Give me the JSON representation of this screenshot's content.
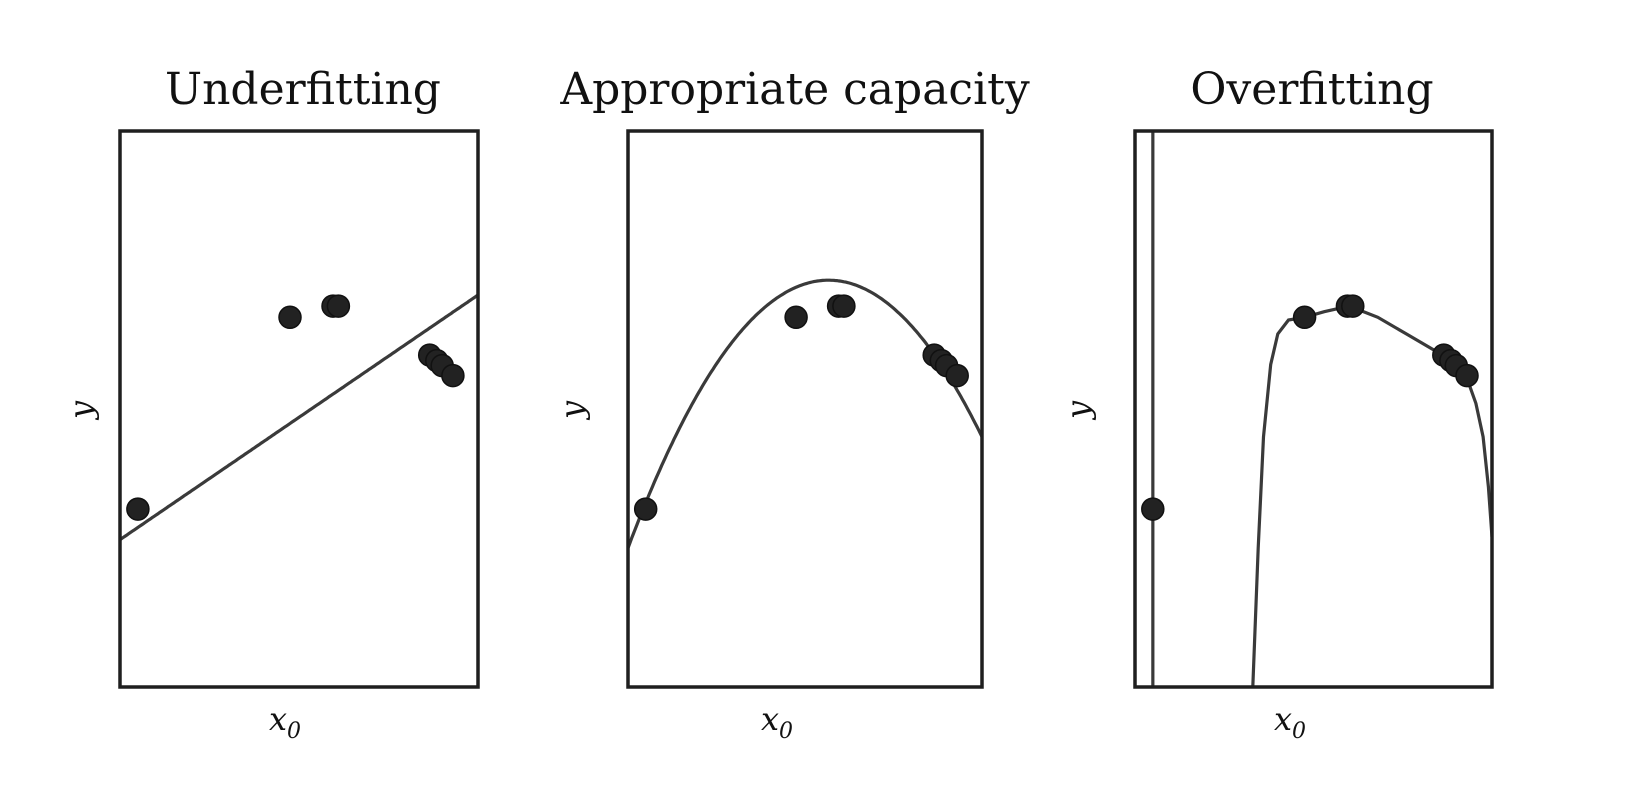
{
  "figure": {
    "background": "#ffffff",
    "ink": "#1f1f1f",
    "curve_color": "#3a3a3a",
    "point_color": "#222222"
  },
  "chart_data": [
    {
      "type": "scatter",
      "title": "Underfitting",
      "xlabel": "x",
      "xlabel_sub": "0",
      "ylabel": "y",
      "xlim": [
        0,
        1
      ],
      "ylim": [
        0,
        1
      ],
      "grid": false,
      "ticks": false,
      "points": [
        {
          "x": 0.05,
          "y": 0.32
        },
        {
          "x": 0.475,
          "y": 0.665
        },
        {
          "x": 0.595,
          "y": 0.685
        },
        {
          "x": 0.61,
          "y": 0.685
        },
        {
          "x": 0.865,
          "y": 0.597
        },
        {
          "x": 0.885,
          "y": 0.587
        },
        {
          "x": 0.9,
          "y": 0.578
        },
        {
          "x": 0.93,
          "y": 0.56
        }
      ],
      "fit": {
        "model": "linear",
        "coefficients": [
          0.44,
          0.265
        ]
      }
    },
    {
      "type": "scatter",
      "title": "Appropriate capacity",
      "xlabel": "x",
      "xlabel_sub": "0",
      "ylabel": "y",
      "xlim": [
        0,
        1
      ],
      "ylim": [
        0,
        1
      ],
      "grid": false,
      "ticks": false,
      "points": [
        {
          "x": 0.05,
          "y": 0.32
        },
        {
          "x": 0.475,
          "y": 0.665
        },
        {
          "x": 0.595,
          "y": 0.685
        },
        {
          "x": 0.61,
          "y": 0.685
        },
        {
          "x": 0.865,
          "y": 0.597
        },
        {
          "x": 0.885,
          "y": 0.587
        },
        {
          "x": 0.9,
          "y": 0.578
        },
        {
          "x": 0.93,
          "y": 0.56
        }
      ],
      "fit": {
        "model": "quadratic",
        "coefficients": [
          0.25,
          1.7,
          -1.5
        ]
      }
    },
    {
      "type": "scatter",
      "title": "Overfitting",
      "xlabel": "x",
      "xlabel_sub": "0",
      "ylabel": "y",
      "xlim": [
        0,
        1
      ],
      "ylim": [
        0,
        1
      ],
      "grid": false,
      "ticks": false,
      "points": [
        {
          "x": 0.05,
          "y": 0.32
        },
        {
          "x": 0.475,
          "y": 0.665
        },
        {
          "x": 0.595,
          "y": 0.685
        },
        {
          "x": 0.61,
          "y": 0.685
        },
        {
          "x": 0.865,
          "y": 0.597
        },
        {
          "x": 0.885,
          "y": 0.587
        },
        {
          "x": 0.9,
          "y": 0.578
        },
        {
          "x": 0.93,
          "y": 0.56
        }
      ],
      "fit": {
        "model": "high-degree polynomial",
        "vertical_asymptote_x": 0.05,
        "curve": [
          [
            0.33,
            0.0
          ],
          [
            0.345,
            0.25
          ],
          [
            0.36,
            0.45
          ],
          [
            0.38,
            0.58
          ],
          [
            0.4,
            0.635
          ],
          [
            0.43,
            0.66
          ],
          [
            0.475,
            0.665
          ],
          [
            0.53,
            0.675
          ],
          [
            0.6,
            0.685
          ],
          [
            0.68,
            0.665
          ],
          [
            0.76,
            0.635
          ],
          [
            0.84,
            0.605
          ],
          [
            0.9,
            0.578
          ],
          [
            0.93,
            0.555
          ],
          [
            0.955,
            0.51
          ],
          [
            0.975,
            0.45
          ],
          [
            0.99,
            0.36
          ],
          [
            1.0,
            0.27
          ]
        ]
      }
    }
  ]
}
